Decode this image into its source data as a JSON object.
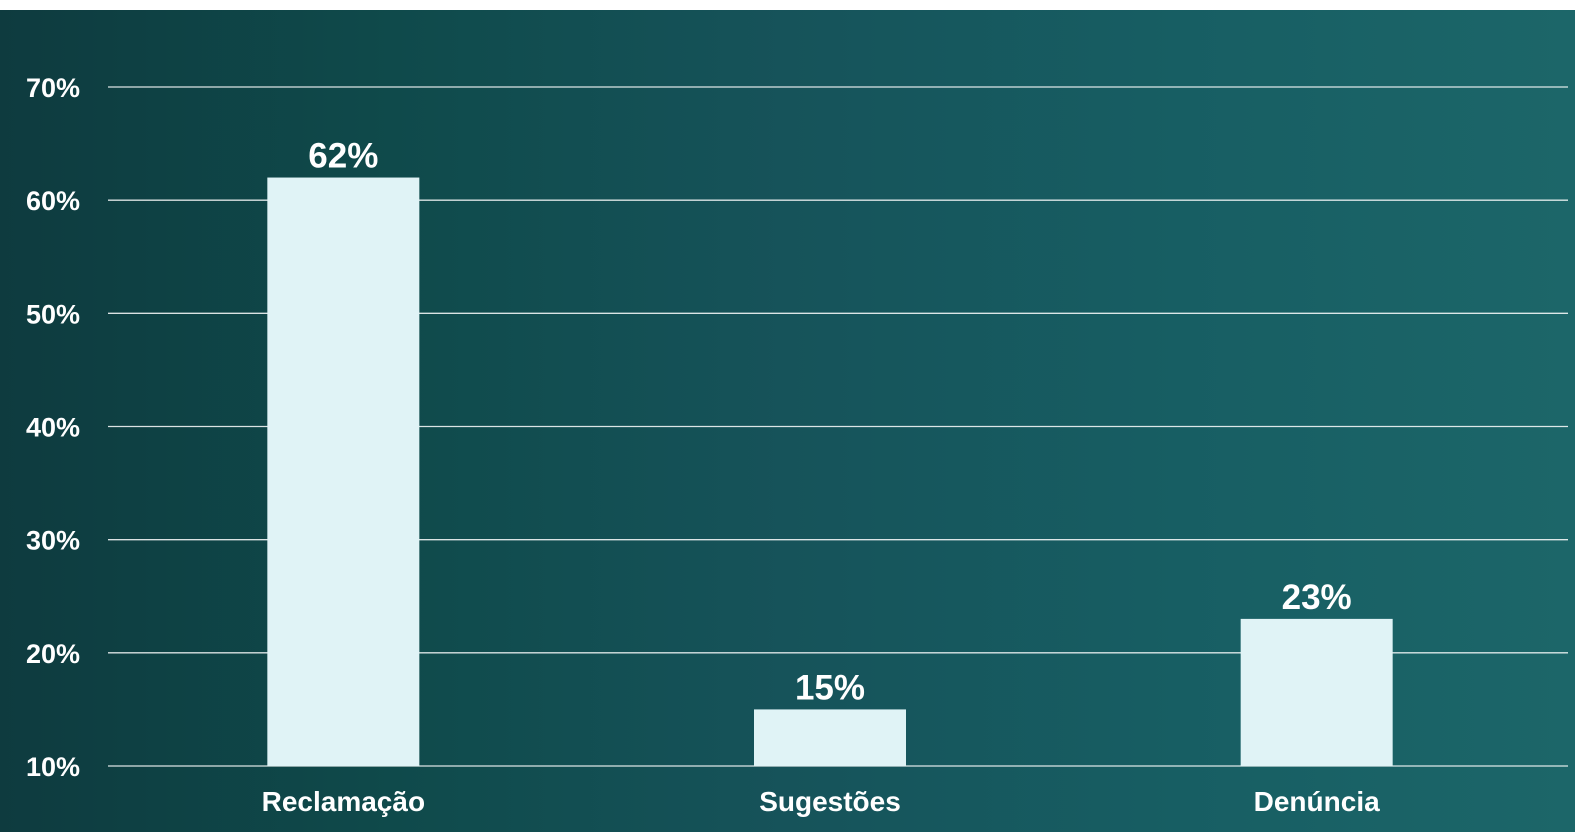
{
  "colors": {
    "bar": "#e0f3f6",
    "text": "#ffffff",
    "grid": "#ffffff",
    "background_start": "#0e3b3f",
    "background_end": "#1c6669"
  },
  "chart_data": {
    "type": "bar",
    "categories": [
      "Reclamação",
      "Sugestões",
      "Denúncia"
    ],
    "values": [
      62,
      15,
      23
    ],
    "value_labels": [
      "62%",
      "15%",
      "23%"
    ],
    "yticks": [
      10,
      20,
      30,
      40,
      50,
      60,
      70
    ],
    "ytick_labels": [
      "10%",
      "20%",
      "30%",
      "40%",
      "50%",
      "60%",
      "70%"
    ],
    "ylim": [
      10,
      70
    ],
    "grid": true,
    "legend": "none"
  }
}
